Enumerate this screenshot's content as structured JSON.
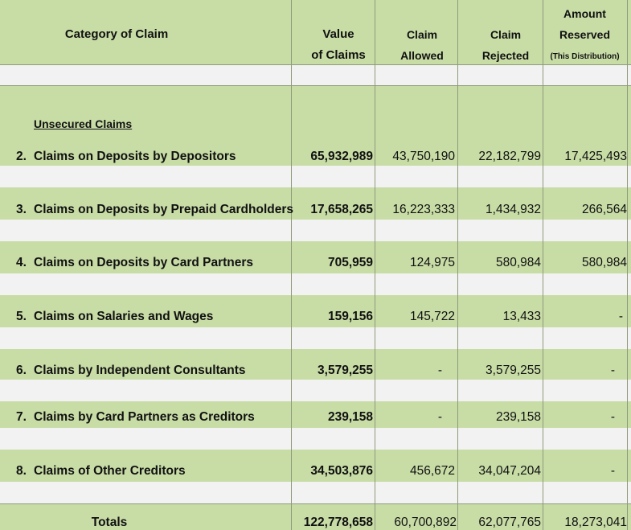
{
  "headers": {
    "category": "Category of Claim",
    "value_line1": "Value",
    "value_line2": "of Claims",
    "allowed_line1": "Claim",
    "allowed_line2": "Allowed",
    "rejected_line1": "Claim",
    "rejected_line2": "Rejected",
    "reserved_line1": "Amount",
    "reserved_line2": "Reserved",
    "reserved_line3": "(This Distribution)"
  },
  "section_label": "Unsecured Claims",
  "rows": [
    {
      "number": "2.",
      "label": "Claims on Deposits by Depositors",
      "value": "65,932,989",
      "allowed": "43,750,190",
      "rejected": "22,182,799",
      "reserved": "17,425,493"
    },
    {
      "number": "3.",
      "label": "Claims on Deposits by Prepaid Cardholders",
      "value": "17,658,265",
      "allowed": "16,223,333",
      "rejected": "1,434,932",
      "reserved": "266,564"
    },
    {
      "number": "4.",
      "label": "Claims on Deposits by Card Partners",
      "value": "705,959",
      "allowed": "124,975",
      "rejected": "580,984",
      "reserved": "580,984"
    },
    {
      "number": "5.",
      "label": "Claims on Salaries and Wages",
      "value": "159,156",
      "allowed": "145,722",
      "rejected": "13,433",
      "reserved": "-"
    },
    {
      "number": "6.",
      "label": "Claims by Independent Consultants",
      "value": "3,579,255",
      "allowed": "-",
      "rejected": "3,579,255",
      "reserved": "-"
    },
    {
      "number": "7.",
      "label": "Claims by Card Partners as Creditors",
      "value": "239,158",
      "allowed": "-",
      "rejected": "239,158",
      "reserved": "-"
    },
    {
      "number": "8.",
      "label": "Claims of Other Creditors",
      "value": "34,503,876",
      "allowed": "456,672",
      "rejected": "34,047,204",
      "reserved": "-"
    }
  ],
  "totals": {
    "label": "Totals",
    "value": "122,778,658",
    "allowed": "60,700,892",
    "rejected": "62,077,765",
    "reserved": "18,273,041"
  }
}
